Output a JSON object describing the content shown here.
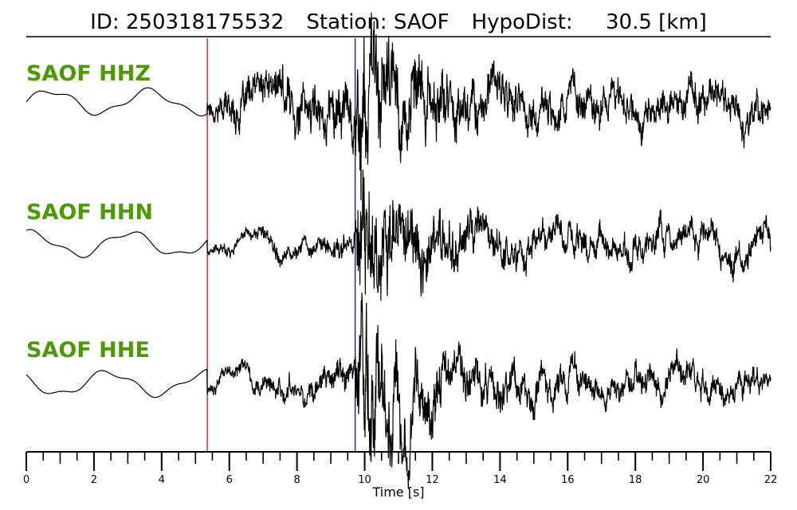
{
  "header": {
    "id_text": "ID: 250318175532",
    "station_text": "Station: SAOF",
    "dist_text": "HypoDist:     30.5 [km]"
  },
  "chart_data": {
    "type": "line",
    "title": "ID: 250318175532   Station: SAOF   HypoDist:     30.5 [km]",
    "xlabel": "Time [s]",
    "xlim": [
      0,
      22
    ],
    "x_ticks": [
      0,
      2,
      4,
      6,
      8,
      10,
      12,
      14,
      16,
      18,
      20,
      22
    ],
    "minor_tick_step": 0.5,
    "grid": false,
    "label_color": "#4a9a00",
    "trace_color": "#000000",
    "markers": [
      {
        "time": 5.35,
        "color": "#e02020"
      },
      {
        "time": 9.72,
        "color": "#1a1aa8"
      }
    ],
    "series": [
      {
        "name": "SAOF HHZ",
        "p_amp": 0.3,
        "s_amp": 1.0,
        "late_amp": 0.25
      },
      {
        "name": "SAOF HHN",
        "p_amp": 0.12,
        "s_amp": 1.0,
        "late_amp": 0.2
      },
      {
        "name": "SAOF HHE",
        "p_amp": 0.15,
        "s_amp": 1.0,
        "late_amp": 0.2
      }
    ]
  }
}
